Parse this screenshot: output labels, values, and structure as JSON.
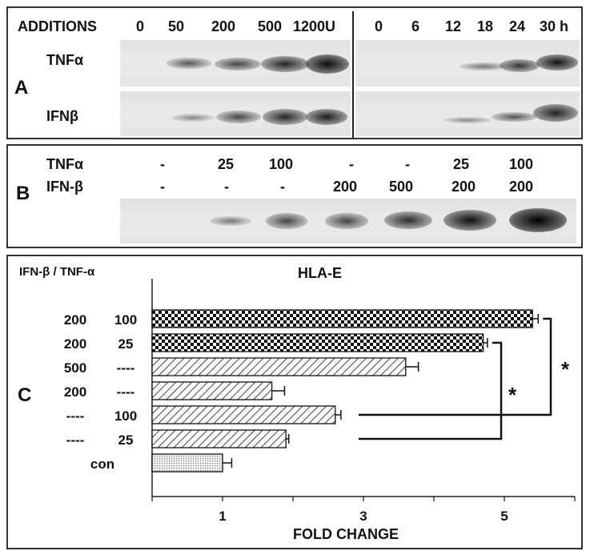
{
  "panel_a": {
    "letter": "A",
    "additions_label": "ADDITIONS",
    "dose_labels": [
      "0",
      "50",
      "200",
      "500",
      "1200U"
    ],
    "time_labels": [
      "0",
      "6",
      "12",
      "18",
      "24",
      "30 h"
    ],
    "rows": [
      "TNFα",
      "IFNβ"
    ]
  },
  "panel_b": {
    "letter": "B",
    "row1_label": "TNFα",
    "row2_label": "IFN-β",
    "row1_values": [
      "-",
      "25",
      "100",
      "-",
      "-",
      "25",
      "100"
    ],
    "row2_values": [
      "-",
      "-",
      "-",
      "200",
      "500",
      "200",
      "200"
    ]
  },
  "panel_c": {
    "letter": "C",
    "header": "IFN-β / TNF-α",
    "significance": [
      "*",
      "*"
    ]
  },
  "chart_data": {
    "type": "bar",
    "orientation": "horizontal",
    "title": "HLA-E",
    "xlabel": "FOLD CHANGE",
    "ylabel": "",
    "xlim": [
      0,
      6
    ],
    "xticks": [
      1,
      3,
      5
    ],
    "categories": [
      {
        "ifn": "200",
        "tnf": "100"
      },
      {
        "ifn": "200",
        "tnf": "25"
      },
      {
        "ifn": "500",
        "tnf": "----"
      },
      {
        "ifn": "200",
        "tnf": "----"
      },
      {
        "ifn": "----",
        "tnf": "100"
      },
      {
        "ifn": "----",
        "tnf": "25"
      },
      {
        "ifn": "con",
        "tnf": ""
      }
    ],
    "values": [
      5.4,
      4.7,
      3.6,
      1.7,
      2.6,
      1.9,
      1.0
    ],
    "errors": [
      0.08,
      0.06,
      0.18,
      0.18,
      0.08,
      0.04,
      0.13
    ],
    "patterns": [
      "checker",
      "checker",
      "diagonal",
      "diagonal",
      "diagonal",
      "diagonal",
      "dotted"
    ]
  }
}
